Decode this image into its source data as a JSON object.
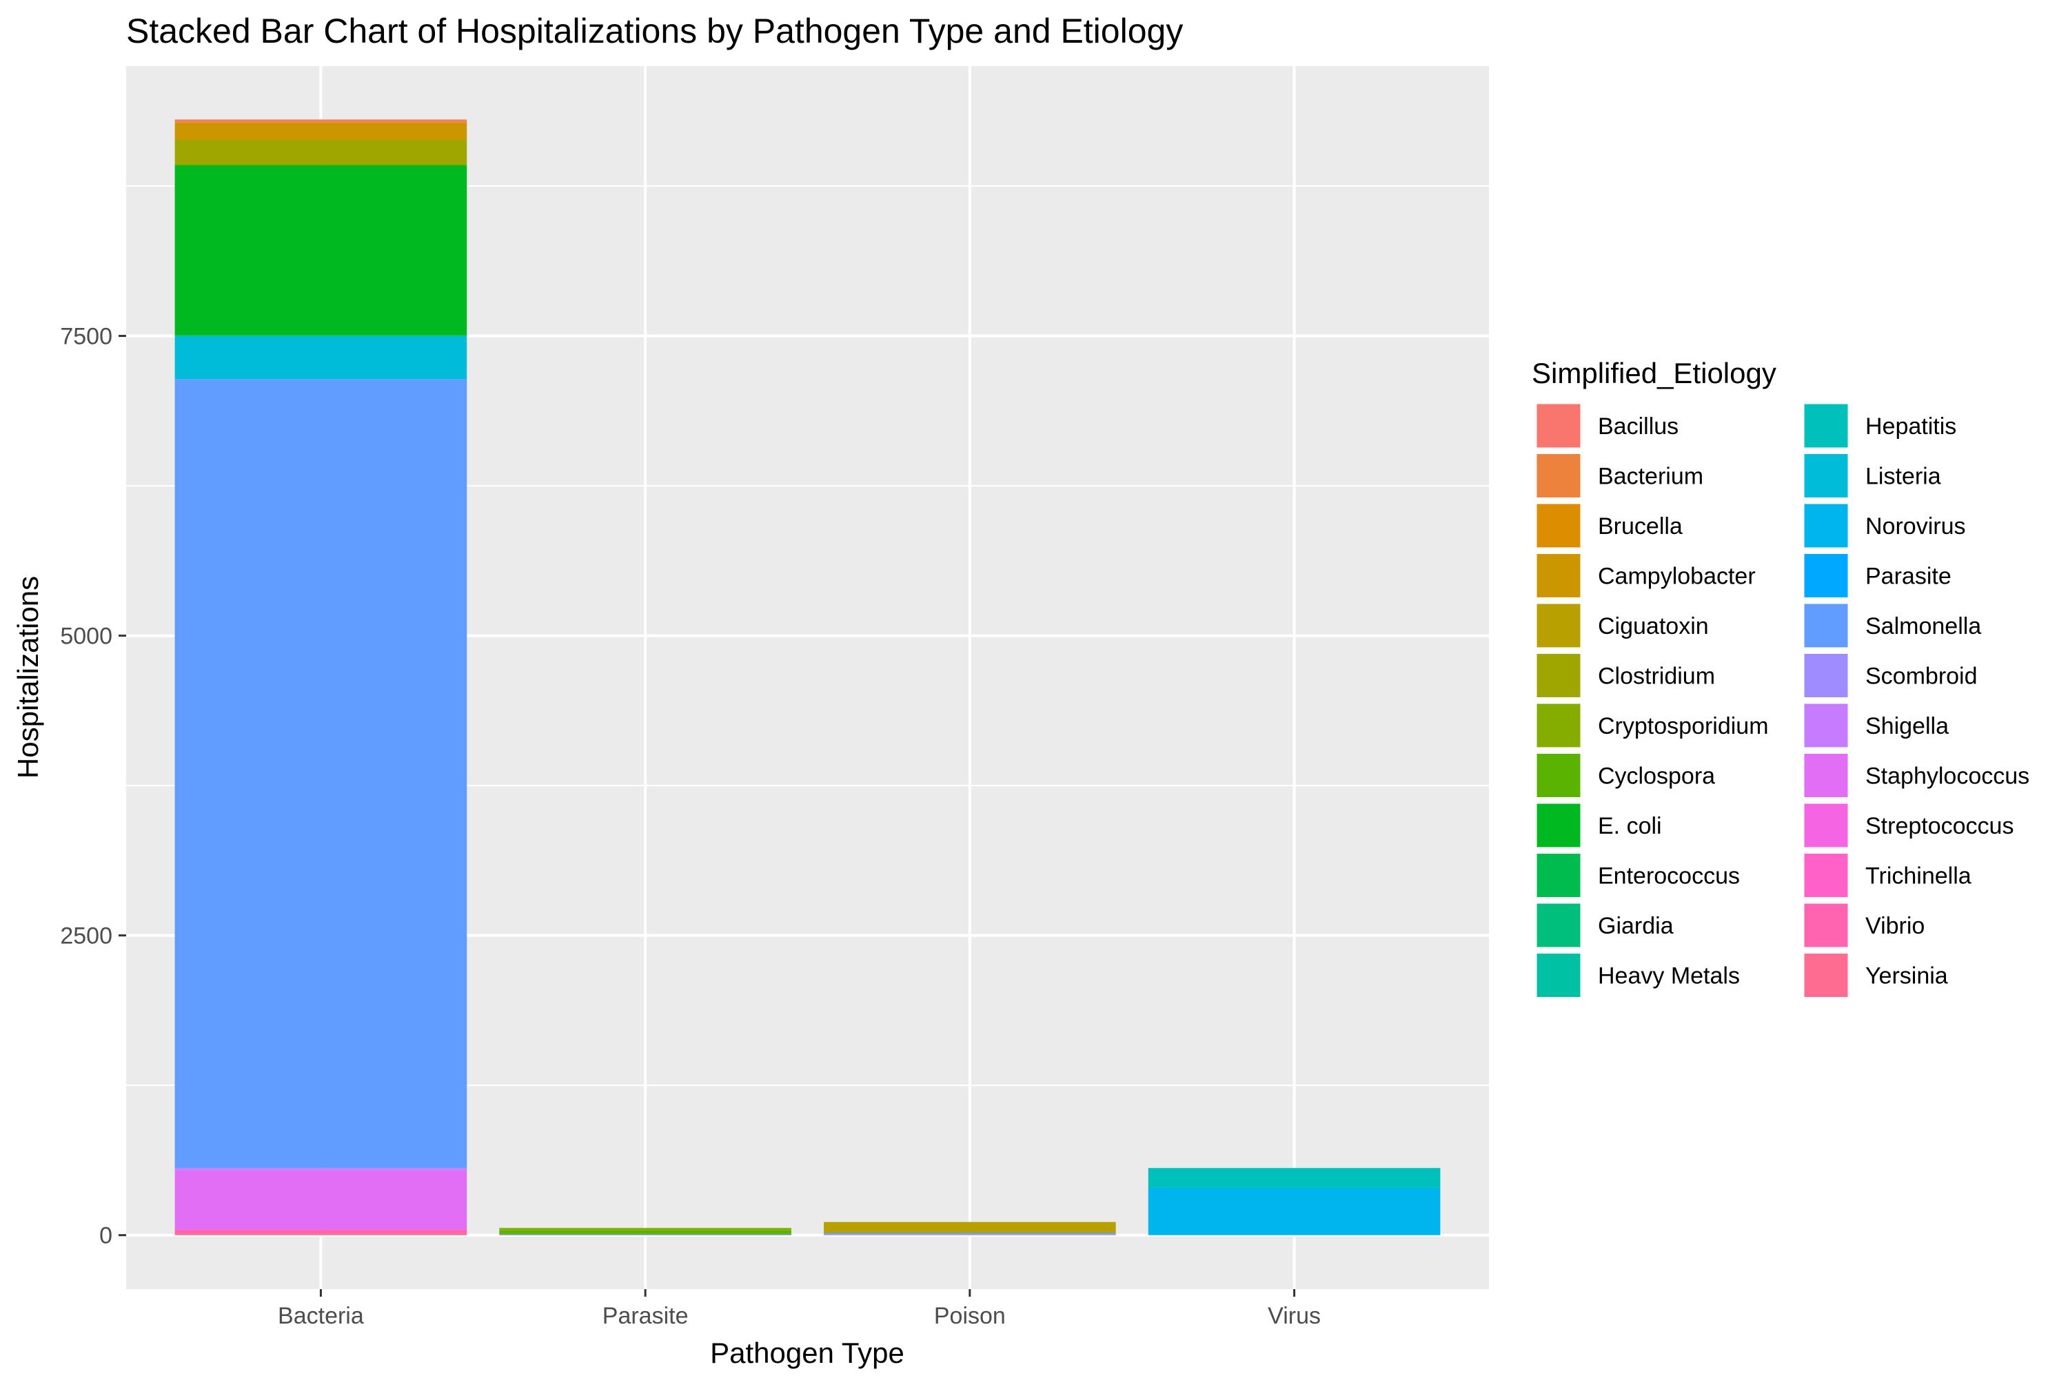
{
  "chart_data": {
    "type": "bar",
    "stacked": true,
    "title": "Stacked Bar Chart of Hospitalizations by Pathogen Type and Etiology",
    "xlabel": "Pathogen Type",
    "ylabel": "Hospitalizations",
    "categories": [
      "Bacteria",
      "Parasite",
      "Poison",
      "Virus"
    ],
    "ylim": [
      -450,
      9750
    ],
    "yticks": [
      0,
      2500,
      5000,
      7500
    ],
    "ytick_labels": [
      "0",
      "2500",
      "5000",
      "7500"
    ],
    "grid": true,
    "legend": {
      "title": "Simplified_Etiology",
      "position": "right",
      "columns": 2
    },
    "series": [
      {
        "name": "Bacillus",
        "color": "#F8766D",
        "values": [
          10,
          0,
          0,
          0
        ]
      },
      {
        "name": "Bacterium",
        "color": "#EC823C",
        "values": [
          15,
          0,
          0,
          0
        ]
      },
      {
        "name": "Brucella",
        "color": "#DD8D00",
        "values": [
          5,
          0,
          0,
          0
        ]
      },
      {
        "name": "Campylobacter",
        "color": "#CB9600",
        "values": [
          140,
          0,
          0,
          0
        ]
      },
      {
        "name": "Ciguatoxin",
        "color": "#B7A000",
        "values": [
          0,
          0,
          90,
          0
        ]
      },
      {
        "name": "Clostridium",
        "color": "#9FA600",
        "values": [
          210,
          0,
          0,
          0
        ]
      },
      {
        "name": "Cryptosporidium",
        "color": "#84AD00",
        "values": [
          0,
          20,
          0,
          0
        ]
      },
      {
        "name": "Cyclospora",
        "color": "#5AB300",
        "values": [
          0,
          30,
          0,
          0
        ]
      },
      {
        "name": "E. coli",
        "color": "#00B81F",
        "values": [
          1420,
          0,
          0,
          0
        ]
      },
      {
        "name": "Enterococcus",
        "color": "#00BB4E",
        "values": [
          5,
          0,
          0,
          0
        ]
      },
      {
        "name": "Giardia",
        "color": "#00BF7D",
        "values": [
          0,
          5,
          0,
          0
        ]
      },
      {
        "name": "Heavy Metals",
        "color": "#00C1A3",
        "values": [
          0,
          0,
          5,
          0
        ]
      },
      {
        "name": "Hepatitis",
        "color": "#00C0BB",
        "values": [
          0,
          0,
          0,
          165
        ]
      },
      {
        "name": "Listeria",
        "color": "#00BCD8",
        "values": [
          360,
          0,
          0,
          0
        ]
      },
      {
        "name": "Norovirus",
        "color": "#00B5EE",
        "values": [
          0,
          0,
          0,
          395
        ]
      },
      {
        "name": "Parasite",
        "color": "#00A9FF",
        "values": [
          0,
          0,
          0,
          0
        ]
      },
      {
        "name": "Salmonella",
        "color": "#619CFF",
        "values": [
          6580,
          0,
          0,
          0
        ]
      },
      {
        "name": "Scombroid",
        "color": "#9F8CFF",
        "values": [
          0,
          0,
          15,
          0
        ]
      },
      {
        "name": "Shigella",
        "color": "#C77CFF",
        "values": [
          20,
          0,
          0,
          0
        ]
      },
      {
        "name": "Staphylococcus",
        "color": "#E36EF6",
        "values": [
          490,
          0,
          0,
          0
        ]
      },
      {
        "name": "Streptococcus",
        "color": "#F564E3",
        "values": [
          5,
          0,
          0,
          0
        ]
      },
      {
        "name": "Trichinella",
        "color": "#FF61C9",
        "values": [
          0,
          5,
          0,
          0
        ]
      },
      {
        "name": "Vibrio",
        "color": "#FF64B0",
        "values": [
          30,
          0,
          0,
          0
        ]
      },
      {
        "name": "Yersinia",
        "color": "#FF6C91",
        "values": [
          15,
          0,
          0,
          0
        ]
      }
    ]
  }
}
